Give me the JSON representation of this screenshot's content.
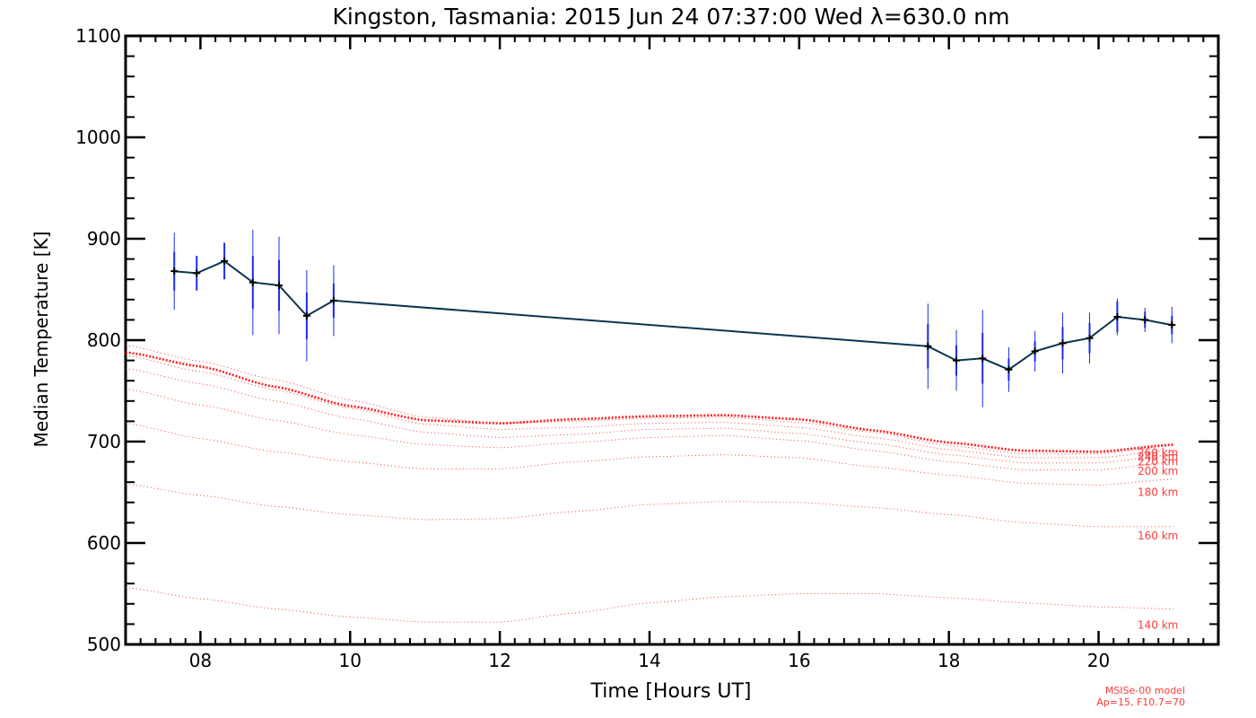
{
  "chart_data": {
    "type": "line",
    "title": "Kingston, Tasmania: 2015 Jun 24 07:37:00 Wed λ=630.0 nm",
    "xlabel": "Time [Hours UT]",
    "ylabel": "Median Temperature [K]",
    "xlim": [
      7.0,
      21.6
    ],
    "ylim": [
      500,
      1100
    ],
    "x_ticks": [
      8,
      10,
      12,
      14,
      16,
      18,
      20
    ],
    "x_tick_labels": [
      "08",
      "10",
      "12",
      "14",
      "16",
      "18",
      "20"
    ],
    "y_ticks": [
      500,
      600,
      700,
      800,
      900,
      1000,
      1100
    ],
    "y_tick_labels": [
      "500",
      "600",
      "700",
      "800",
      "900",
      "1000",
      "1100"
    ],
    "grid": false,
    "colors": {
      "measured_line": "#0b3550",
      "error_bar": "#1a2cf0",
      "model": "#ff2020",
      "model_text": "#ff3a3a"
    },
    "measured": {
      "x": [
        7.65,
        7.95,
        8.32,
        8.7,
        9.05,
        9.42,
        9.78,
        17.72,
        18.1,
        18.45,
        18.8,
        19.15,
        19.52,
        19.88,
        20.25,
        20.62,
        20.98
      ],
      "y": [
        868,
        866,
        878,
        857,
        854,
        824,
        839,
        794,
        780,
        782,
        771,
        789,
        797,
        802,
        823,
        820,
        815
      ],
      "err": [
        19,
        17,
        18,
        26,
        25,
        23,
        17,
        22,
        15,
        25,
        11,
        10,
        16,
        15,
        15,
        8,
        9
      ],
      "err_outer": [
        38,
        17,
        18,
        52,
        48,
        45,
        35,
        42,
        30,
        48,
        22,
        20,
        30,
        25,
        18,
        12,
        18
      ]
    },
    "model_x": [
      7.0,
      8.0,
      9.0,
      10.0,
      11.0,
      12.0,
      13.0,
      14.0,
      15.0,
      16.0,
      17.0,
      18.0,
      19.0,
      20.0,
      21.0
    ],
    "model_altitudes": [
      {
        "label": "140 km",
        "label_y": 519,
        "values": [
          556,
          545,
          535,
          527,
          522,
          522,
          531,
          541,
          547,
          550,
          550,
          546,
          541,
          537,
          535
        ]
      },
      {
        "label": "160 km",
        "label_y": 607,
        "values": [
          658,
          647,
          636,
          628,
          623,
          624,
          631,
          638,
          641,
          640,
          635,
          628,
          620,
          616,
          616
        ]
      },
      {
        "label": "180 km",
        "label_y": 650,
        "values": [
          718,
          703,
          690,
          680,
          673,
          673,
          680,
          685,
          687,
          684,
          675,
          667,
          659,
          657,
          663
        ]
      },
      {
        "label": "200 km",
        "label_y": 671,
        "values": [
          752,
          736,
          721,
          707,
          697,
          694,
          699,
          704,
          706,
          701,
          691,
          680,
          672,
          672,
          680
        ]
      },
      {
        "label": "220 km",
        "label_y": 680,
        "values": [
          772,
          757,
          740,
          723,
          709,
          704,
          707,
          712,
          713,
          708,
          698,
          687,
          679,
          679,
          687
        ]
      },
      {
        "label": "240 km",
        "label_y": 685,
        "values": [
          785,
          769,
          751,
          733,
          717,
          712,
          714,
          718,
          719,
          714,
          704,
          692,
          684,
          684,
          692
        ]
      },
      {
        "label": "260 km",
        "label_y": 689,
        "values": [
          795,
          779,
          761,
          741,
          724,
          718,
          720,
          723,
          724,
          719,
          709,
          696,
          688,
          688,
          696
        ]
      }
    ],
    "model_emission": [
      788,
      774,
      754,
      735,
      721,
      718,
      722,
      725,
      726,
      722,
      711,
      699,
      691,
      690,
      697
    ],
    "footnote": [
      "MSISe-00 model",
      "Ap=15, F10.7=70"
    ]
  }
}
